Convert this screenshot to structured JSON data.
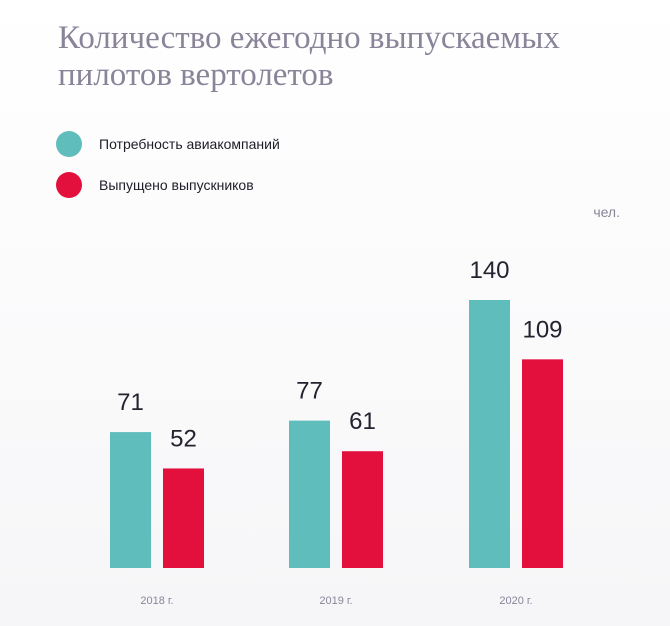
{
  "chart_data": {
    "type": "bar",
    "title_lines": [
      "Количество ежегодно выпускаемых",
      "пилотов вертолетов"
    ],
    "unit": "чел.",
    "categories": [
      "2018 г.",
      "2019 г.",
      "2020 г."
    ],
    "series": [
      {
        "name": "Потребность авиакомпаний",
        "values": [
          71,
          77,
          140
        ],
        "color": "#5fbdbb"
      },
      {
        "name": "Выпущено выпускников",
        "values": [
          52,
          61,
          109
        ],
        "color": "#e3103e"
      }
    ],
    "legend_position": "top-left",
    "grid": false,
    "ylim": [
      0,
      140
    ]
  }
}
